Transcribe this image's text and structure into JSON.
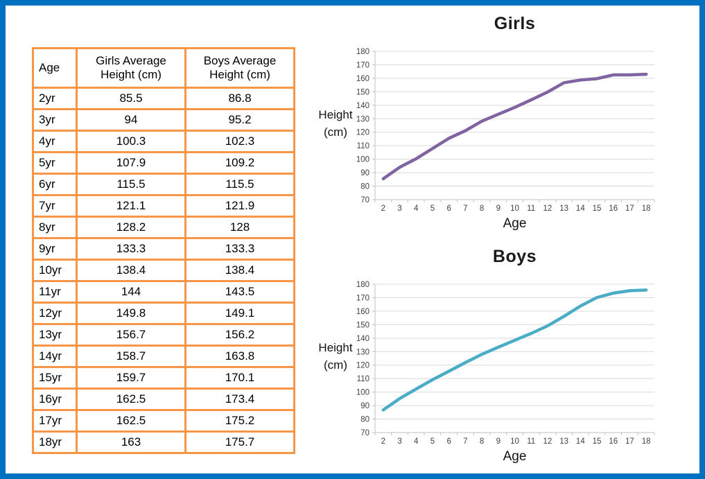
{
  "frame": {
    "border_color": "#0070C0",
    "background": "#FFFFFF"
  },
  "table": {
    "border_color": "#F79646",
    "headers": [
      "Age",
      "Girls Average Height (cm)",
      "Boys Average Height (cm)"
    ],
    "rows": [
      {
        "age": "2yr",
        "girls": "85.5",
        "boys": "86.8"
      },
      {
        "age": "3yr",
        "girls": "94",
        "boys": "95.2"
      },
      {
        "age": "4yr",
        "girls": "100.3",
        "boys": "102.3"
      },
      {
        "age": "5yr",
        "girls": "107.9",
        "boys": "109.2"
      },
      {
        "age": "6yr",
        "girls": "115.5",
        "boys": "115.5"
      },
      {
        "age": "7yr",
        "girls": "121.1",
        "boys": "121.9"
      },
      {
        "age": "8yr",
        "girls": "128.2",
        "boys": "128"
      },
      {
        "age": "9yr",
        "girls": "133.3",
        "boys": "133.3"
      },
      {
        "age": "10yr",
        "girls": "138.4",
        "boys": "138.4"
      },
      {
        "age": "11yr",
        "girls": "144",
        "boys": "143.5"
      },
      {
        "age": "12yr",
        "girls": "149.8",
        "boys": "149.1"
      },
      {
        "age": "13yr",
        "girls": "156.7",
        "boys": "156.2"
      },
      {
        "age": "14yr",
        "girls": "158.7",
        "boys": "163.8"
      },
      {
        "age": "15yr",
        "girls": "159.7",
        "boys": "170.1"
      },
      {
        "age": "16yr",
        "girls": "162.5",
        "boys": "173.4"
      },
      {
        "age": "17yr",
        "girls": "162.5",
        "boys": "175.2"
      },
      {
        "age": "18yr",
        "girls": "163",
        "boys": "175.7"
      }
    ]
  },
  "chart_data": [
    {
      "type": "line",
      "title": "Girls",
      "xlabel": "Age",
      "ylabel": "Height (cm)",
      "ylabel_lines": [
        "Height",
        "(cm)"
      ],
      "categories": [
        "2",
        "3",
        "4",
        "5",
        "6",
        "7",
        "8",
        "9",
        "10",
        "11",
        "12",
        "13",
        "14",
        "15",
        "16",
        "17",
        "18"
      ],
      "values": [
        85.5,
        94,
        100.3,
        107.9,
        115.5,
        121.1,
        128.2,
        133.3,
        138.4,
        144,
        149.8,
        156.7,
        158.7,
        159.7,
        162.5,
        162.5,
        163
      ],
      "ylim": [
        70,
        180
      ],
      "ytick_step": 10,
      "grid": true,
      "legend": false,
      "line_color": "#8064A2"
    },
    {
      "type": "line",
      "title": "Boys",
      "xlabel": "Age",
      "ylabel": "Height (cm)",
      "ylabel_lines": [
        "Height",
        "(cm)"
      ],
      "categories": [
        "2",
        "3",
        "4",
        "5",
        "6",
        "7",
        "8",
        "9",
        "10",
        "11",
        "12",
        "13",
        "14",
        "15",
        "16",
        "17",
        "18"
      ],
      "values": [
        86.8,
        95.2,
        102.3,
        109.2,
        115.5,
        121.9,
        128,
        133.3,
        138.4,
        143.5,
        149.1,
        156.2,
        163.8,
        170.1,
        173.4,
        175.2,
        175.7
      ],
      "ylim": [
        70,
        180
      ],
      "ytick_step": 10,
      "grid": true,
      "legend": false,
      "line_color": "#4BACC6"
    }
  ],
  "colors": {
    "gridline": "#D9D9D9",
    "axis": "#BFBFBF",
    "tick_text": "#404040"
  }
}
